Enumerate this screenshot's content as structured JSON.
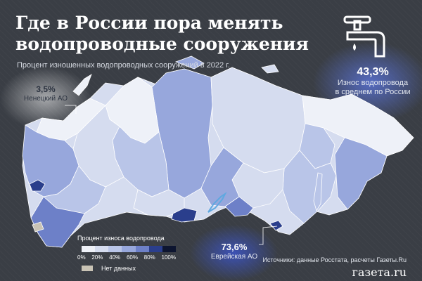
{
  "title": "Где в России пора менять водопроводные сооружения",
  "subtitle": "Процент изношенных водопроводных сооружений в 2022 г.",
  "colors": {
    "background": "#3a3e45",
    "nodata": "#c9c3b5",
    "scale": [
      "#eef1f8",
      "#d5dcef",
      "#b9c5e8",
      "#97a7dc",
      "#6d80c8",
      "#2a3e8c",
      "#0d1530"
    ]
  },
  "callouts": {
    "national": {
      "value": "43,3%",
      "label_line1": "Износ водопровода",
      "label_line2": "в среднем по России"
    },
    "nenets": {
      "value": "3,5%",
      "label": "Ненецкий АО"
    },
    "jewish": {
      "value": "73,6%",
      "label": "Еврейская АО"
    }
  },
  "legend": {
    "title": "Процент износа водопровода",
    "ticks": [
      "0%",
      "20%",
      "40%",
      "60%",
      "80%",
      "100%"
    ],
    "nodata_label": "Нет данных"
  },
  "icons": {
    "faucet": "faucet-icon"
  },
  "source": "Источники: данные Росстата, расчеты Газеты.Ru",
  "brand": "газета.ru"
}
